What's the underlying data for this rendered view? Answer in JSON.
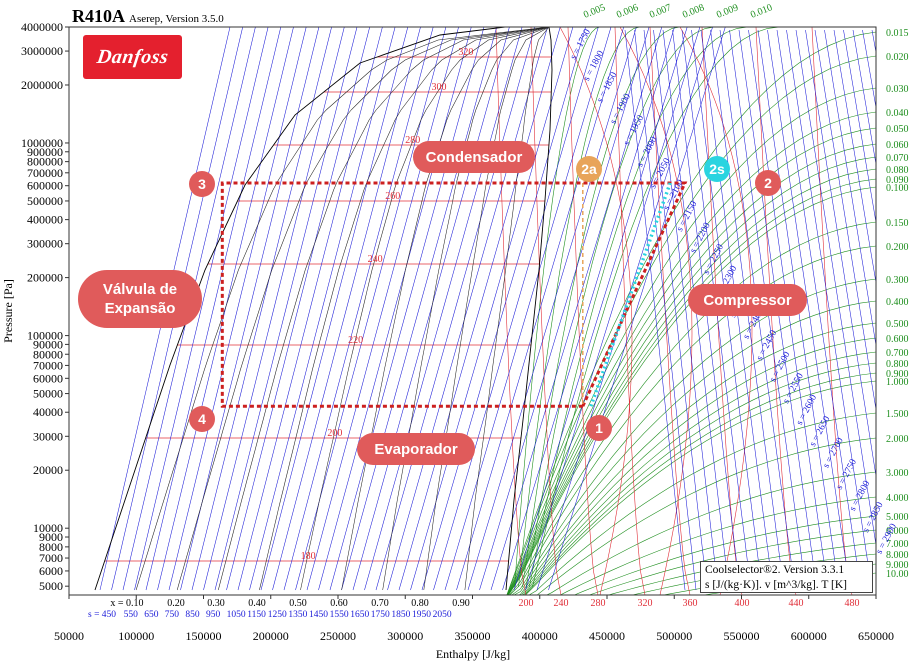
{
  "title": "R410A",
  "subtitle": "Aserep, Version 3.5.0",
  "logo_text": "Danfoss",
  "info_box": {
    "line1": "Coolselector®2. Version 3.3.1",
    "line2": "s [J/(kg·K)]. v [m^3/kg]. T [K]"
  },
  "colors": {
    "accent": "#e05b5b",
    "isotherm": "#e0303a",
    "isentrope": "#1c1cd8",
    "isochore": "#1f8f1f",
    "dome": "#000000",
    "cycle": "#cc2020",
    "ideal": "#2ad4e0",
    "state2a": "#e8a45a"
  },
  "chart_data": {
    "type": "line",
    "title": "R410A",
    "xlabel": "Enthalpy [J/kg]",
    "ylabel": "Pressure [Pa]",
    "x_scale": "linear",
    "y_scale": "log",
    "xlim": [
      50000,
      650000
    ],
    "ylim": [
      4500,
      4000000
    ],
    "x_ticks": [
      50000,
      100000,
      150000,
      200000,
      250000,
      300000,
      350000,
      400000,
      450000,
      500000,
      550000,
      600000,
      650000
    ],
    "x_tick_labels": [
      "50000",
      "100000",
      "150000",
      "200000",
      "250000",
      "300000",
      "350000",
      "400000",
      "450000",
      "500000",
      "550000",
      "600000",
      "650000"
    ],
    "y_ticks": [
      5000,
      6000,
      7000,
      8000,
      9000,
      10000,
      20000,
      30000,
      40000,
      50000,
      60000,
      70000,
      80000,
      90000,
      100000,
      200000,
      300000,
      400000,
      500000,
      600000,
      700000,
      800000,
      900000,
      1000000,
      2000000,
      3000000,
      4000000
    ],
    "y_tick_labels": [
      "5000",
      "6000",
      "7000",
      "8000",
      "9000",
      "10000",
      "20000",
      "30000",
      "40000",
      "50000",
      "60000",
      "70000",
      "80000",
      "90000",
      "100000",
      "200000",
      "300000",
      "400000",
      "500000",
      "600000",
      "700000",
      "800000",
      "900000",
      "1000000",
      "2000000",
      "3000000",
      "4000000"
    ],
    "quality_labels": {
      "prefix": "x = ",
      "values": [
        "0.10",
        "0.20",
        "0.30",
        "0.40",
        "0.50",
        "0.60",
        "0.70",
        "0.80",
        "0.90"
      ]
    },
    "bottom_entropy_labels": {
      "prefix": "s = ",
      "values": [
        "450",
        "550",
        "650",
        "750",
        "850",
        "950",
        "1050",
        "1150",
        "1250",
        "1350",
        "1450",
        "1550",
        "1650",
        "1750",
        "1850",
        "1950",
        "2050"
      ]
    },
    "bottom_temperature_labels": [
      "200",
      "240",
      "280",
      "320",
      "360",
      "400",
      "440",
      "480"
    ],
    "isotherm_labels": [
      "180",
      "200",
      "220",
      "240",
      "260",
      "280",
      "300",
      "320"
    ],
    "entropy_labels": [
      "s = 1750",
      "s = 1800",
      "s = 1850",
      "s = 1900",
      "s = 1950",
      "s = 2000",
      "s = 2050",
      "s = 2100",
      "s = 2150",
      "s = 2200",
      "s = 2250",
      "s = 2300",
      "s = 2350",
      "s = 2400",
      "s = 2450",
      "s = 2500",
      "s = 2550",
      "s = 2600",
      "s = 2650",
      "s = 2700",
      "s = 2750",
      "s = 2800",
      "s = 2850",
      "s = 2900"
    ],
    "volume_top_labels": [
      "0.005",
      "0.006",
      "0.007",
      "0.008",
      "0.009",
      "0.010"
    ],
    "volume_right_labels": [
      "0.015",
      "0.020",
      "0.030",
      "0.040",
      "0.050",
      "0.060",
      "0.070",
      "0.080",
      "0.090",
      "0.100",
      "0.150",
      "0.200",
      "0.300",
      "0.400",
      "0.500",
      "0.600",
      "0.700",
      "0.800",
      "0.900",
      "1.000",
      "1.500",
      "2.000",
      "3.000",
      "4.000",
      "5.000",
      "6.000",
      "7.000",
      "8.000",
      "9.000",
      "10.00"
    ],
    "cycle": {
      "name": "",
      "points": [
        {
          "label": "1",
          "h": 432000,
          "p": 43000
        },
        {
          "label": "2",
          "h": 508000,
          "p": 620000
        },
        {
          "label": "3",
          "h": 164000,
          "p": 620000
        },
        {
          "label": "4",
          "h": 164000,
          "p": 43000
        }
      ],
      "ideal_compression": [
        {
          "h": 438000,
          "p": 43000
        },
        {
          "h": 497000,
          "p": 620000
        }
      ],
      "state_2a": {
        "label": "2a",
        "h": 432000,
        "p": 620000
      },
      "state_2s": {
        "label": "2s",
        "h": 497000,
        "p": 620000
      }
    },
    "annotations": [
      "Condensador",
      "Válvula de Expansão",
      "Evaporador",
      "Compressor"
    ]
  }
}
